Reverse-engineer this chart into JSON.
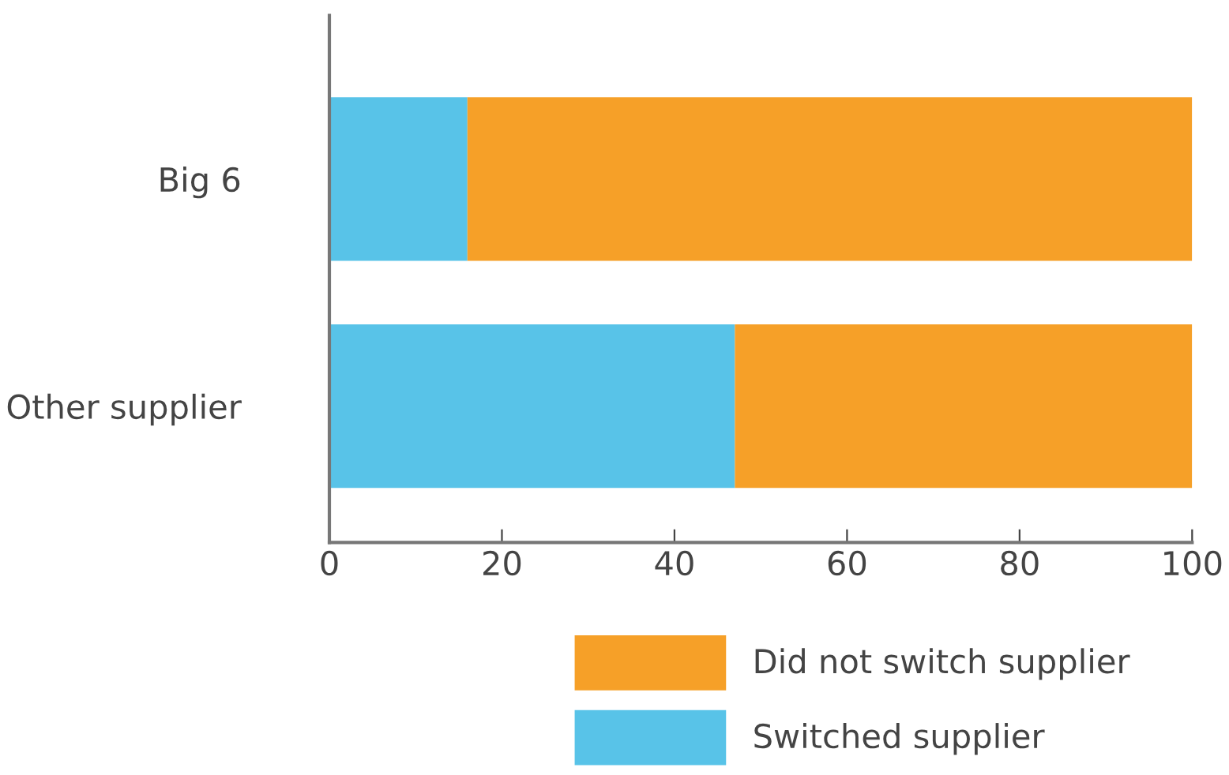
{
  "chart_data": {
    "type": "bar",
    "orientation": "horizontal",
    "stacked": true,
    "categories": [
      "Big 6",
      "Other supplier"
    ],
    "series": [
      {
        "name": "Switched supplier",
        "color": "#58c3e8",
        "values": [
          16,
          47
        ]
      },
      {
        "name": "Did not switch supplier",
        "color": "#f6a028",
        "values": [
          84,
          53
        ]
      }
    ],
    "xlim": [
      0,
      100
    ],
    "xticks": [
      0,
      20,
      40,
      60,
      80,
      100
    ],
    "grid": false,
    "legend": "bottom"
  }
}
